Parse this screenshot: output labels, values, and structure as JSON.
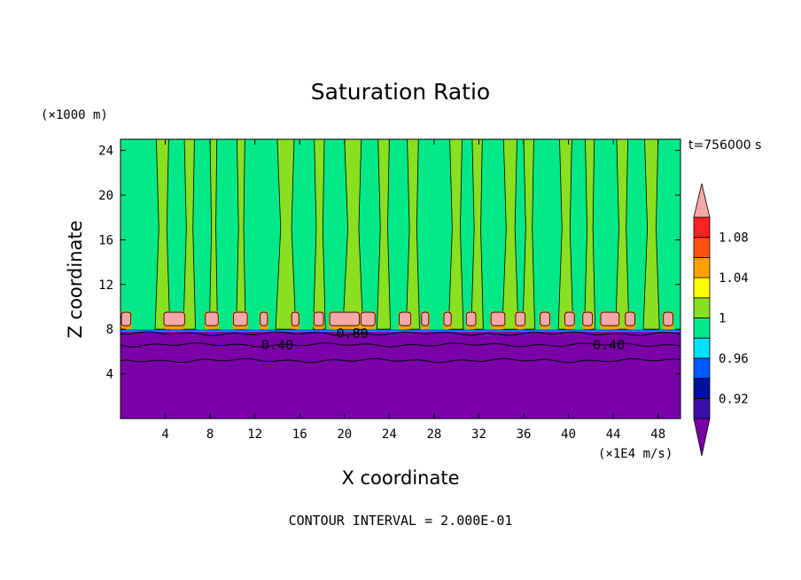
{
  "chart_data": {
    "type": "heatmap",
    "title": "Saturation Ratio",
    "xlabel": "X coordinate",
    "ylabel": "Z coordinate",
    "x_unit": "(×1E4 m/s)",
    "y_unit": "(×1000 m)",
    "time_label": "t=756000 s",
    "footer": "CONTOUR INTERVAL = 2.000E-01",
    "xlim": [
      0,
      50
    ],
    "ylim": [
      0,
      25
    ],
    "x_ticks": [
      4,
      8,
      12,
      16,
      20,
      24,
      28,
      32,
      36,
      40,
      44,
      48
    ],
    "y_ticks": [
      4,
      8,
      12,
      16,
      20,
      24
    ],
    "contour_labels": [
      {
        "text": "0.40",
        "x": 14.0,
        "z": 6.6
      },
      {
        "text": "0.80",
        "x": 20.7,
        "z": 7.6
      },
      {
        "text": "0.40",
        "x": 43.6,
        "z": 6.6
      }
    ],
    "colorbar": {
      "levels": [
        0.9,
        0.92,
        0.94,
        0.96,
        0.98,
        1.0,
        1.02,
        1.04,
        1.06,
        1.08,
        1.1
      ],
      "tick_labels": [
        "0.92",
        "0.96",
        "1",
        "1.04",
        "1.08"
      ],
      "colors": [
        "#7a00a8",
        "#3a10a8",
        "#0010a0",
        "#0058ff",
        "#00e0ff",
        "#00e888",
        "#88e020",
        "#ffff00",
        "#ffa000",
        "#ff5010",
        "#ff2020",
        "#f4a8a8"
      ]
    },
    "layers": {
      "dry_top_z": 7.8,
      "contour_z": [
        5.2,
        6.6,
        7.6
      ],
      "cloud_base_z": 8.0,
      "cloud_top_z": 9.6,
      "moist_bands_x": [
        [
          3.2,
          4.3
        ],
        [
          5.7,
          6.6
        ],
        [
          8.0,
          8.6
        ],
        [
          10.4,
          11.1
        ],
        [
          14.0,
          15.5
        ],
        [
          17.3,
          18.2
        ],
        [
          20.0,
          21.5
        ],
        [
          23.0,
          24.0
        ],
        [
          25.6,
          26.6
        ],
        [
          29.4,
          30.5
        ],
        [
          31.4,
          32.3
        ],
        [
          34.2,
          35.4
        ],
        [
          36.0,
          36.9
        ],
        [
          39.2,
          40.3
        ],
        [
          41.5,
          42.3
        ],
        [
          44.3,
          45.3
        ],
        [
          46.8,
          48.0
        ]
      ],
      "cloud_cells_x": [
        [
          0.0,
          1.0
        ],
        [
          3.8,
          5.8
        ],
        [
          7.5,
          8.8
        ],
        [
          10.0,
          11.4
        ],
        [
          12.4,
          13.2
        ],
        [
          15.2,
          16.0
        ],
        [
          17.2,
          18.2
        ],
        [
          18.6,
          21.4
        ],
        [
          21.4,
          22.8
        ],
        [
          24.8,
          26.0
        ],
        [
          26.8,
          27.6
        ],
        [
          28.8,
          29.6
        ],
        [
          30.8,
          31.8
        ],
        [
          33.0,
          34.4
        ],
        [
          35.2,
          36.2
        ],
        [
          37.4,
          38.4
        ],
        [
          39.6,
          40.6
        ],
        [
          41.2,
          42.2
        ],
        [
          42.8,
          44.6
        ],
        [
          45.0,
          46.0
        ],
        [
          48.4,
          49.4
        ]
      ]
    }
  }
}
